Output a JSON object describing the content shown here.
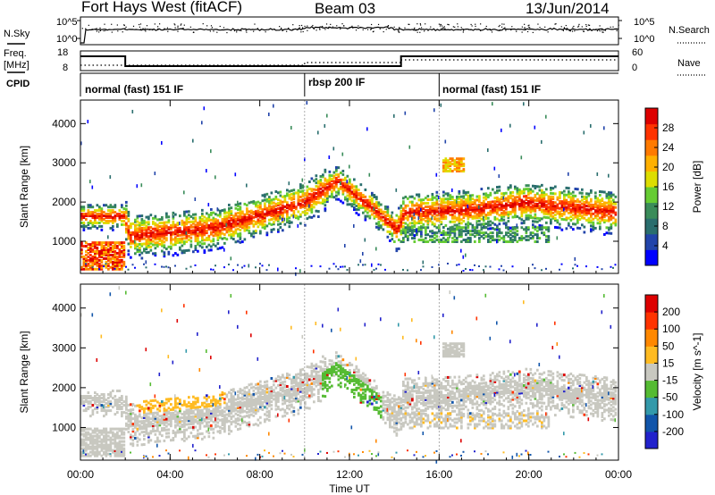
{
  "header": {
    "station": "Fort Hays West (fitACF)",
    "beam": "Beam 03",
    "date": "13/Jun/2014"
  },
  "left_labels": {
    "nsky": "N.Sky",
    "freq": "Freq.",
    "freq_unit": "[MHz]",
    "cpid": "CPID"
  },
  "right_labels": {
    "nsearch": "N.Search",
    "nave": "Nave"
  },
  "noise_panel": {
    "left_ticks": [
      "10^5",
      "10^0"
    ],
    "right_ticks": [
      "10^5",
      "10^0"
    ]
  },
  "freq_panel": {
    "left_ticks": [
      "18",
      "8"
    ],
    "right_ticks": [
      "60",
      "0"
    ]
  },
  "cpid_modes": [
    "normal (fast) 151 IF",
    "rbsp 200 IF",
    "normal (fast) 151 IF"
  ],
  "colors": {
    "power_scale": [
      "#0000ff",
      "#2244aa",
      "#2a6e6e",
      "#3a8c5a",
      "#66cc33",
      "#dddd00",
      "#ffb000",
      "#ff7a00",
      "#ff3300",
      "#dd0000"
    ],
    "velocity_scale": [
      "#2222cc",
      "#1155aa",
      "#3399aa",
      "#55bb33",
      "#c8c8c0",
      "#ffbb22",
      "#ff8800",
      "#ff3300",
      "#dd0000"
    ]
  },
  "chart_data": [
    {
      "type": "heatmap",
      "title": "Power",
      "xlabel": "",
      "ylabel": "Slant Range [km]",
      "x_ticks": [
        "00:00",
        "04:00",
        "08:00",
        "12:00",
        "16:00",
        "20:00",
        "00:00"
      ],
      "y_ticks": [
        "1000",
        "2000",
        "3000",
        "4000"
      ],
      "ylim": [
        180,
        4600
      ],
      "x_hours": [
        0,
        24
      ],
      "colorbar": {
        "label": "Power [dB]",
        "ticks": [
          "4",
          "8",
          "12",
          "16",
          "20",
          "24",
          "28"
        ]
      },
      "echo_band_center_km": [
        {
          "t": 0,
          "r": 1650
        },
        {
          "t": 2,
          "r": 1650
        },
        {
          "t": 2.2,
          "r": 1150
        },
        {
          "t": 6,
          "r": 1350
        },
        {
          "t": 10,
          "r": 2000
        },
        {
          "t": 11.5,
          "r": 2550
        },
        {
          "t": 13,
          "r": 1900
        },
        {
          "t": 14.2,
          "r": 1300
        },
        {
          "t": 14.5,
          "r": 1750
        },
        {
          "t": 17,
          "r": 1800
        },
        {
          "t": 20,
          "r": 2000
        },
        {
          "t": 24,
          "r": 1750
        }
      ]
    },
    {
      "type": "heatmap",
      "title": "Velocity",
      "xlabel": "Time UT",
      "ylabel": "Slant Range [km]",
      "x_ticks": [
        "00:00",
        "04:00",
        "08:00",
        "12:00",
        "16:00",
        "20:00",
        "00:00"
      ],
      "y_ticks": [
        "1000",
        "2000",
        "3000",
        "4000"
      ],
      "ylim": [
        180,
        4600
      ],
      "x_hours": [
        0,
        24
      ],
      "colorbar": {
        "label": "Velocity [m s^-1]",
        "ticks": [
          "200",
          "100",
          "50",
          "15",
          "-15",
          "-50",
          "-100",
          "-200"
        ]
      }
    }
  ]
}
